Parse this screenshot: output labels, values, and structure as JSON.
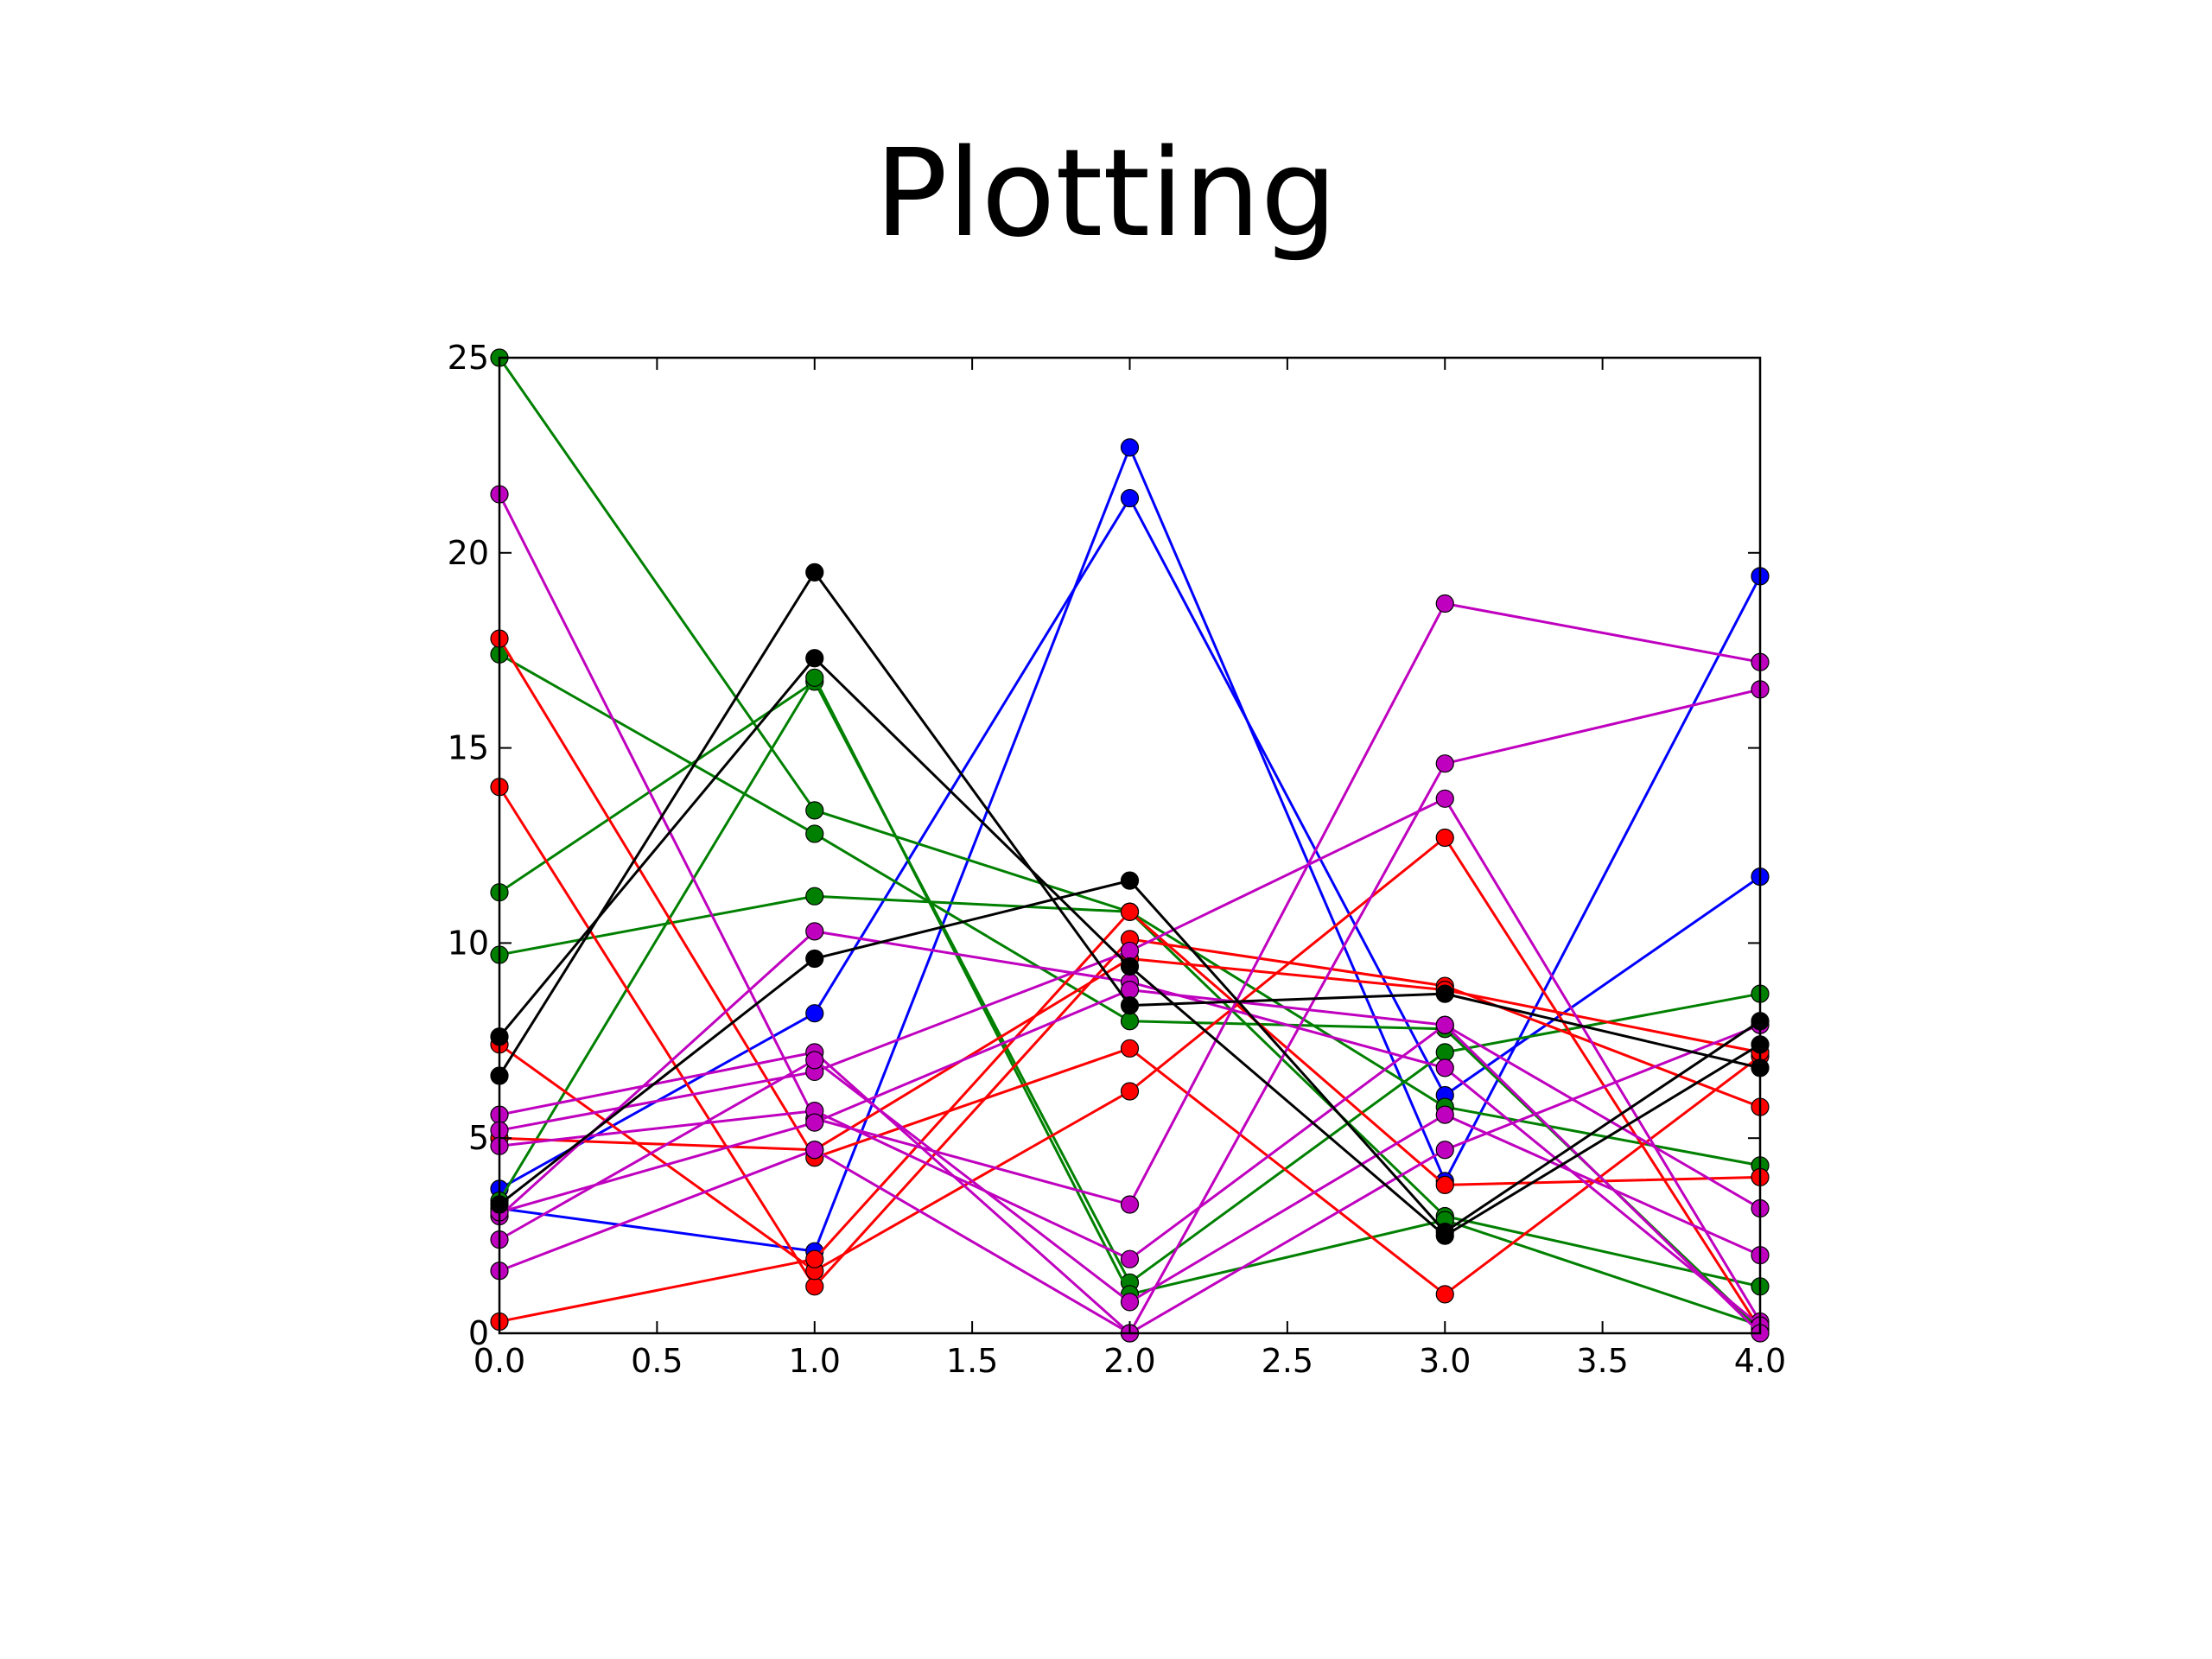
{
  "slide": {
    "title": "Plotting"
  },
  "chart_data": {
    "type": "line",
    "title": "",
    "xlabel": "",
    "ylabel": "",
    "xlim": [
      0,
      4
    ],
    "ylim": [
      0,
      25
    ],
    "grid": false,
    "marker": "circle",
    "x": [
      0,
      1,
      2,
      3,
      4
    ],
    "x_ticks": [
      "0.0",
      "0.5",
      "1.0",
      "1.5",
      "2.0",
      "2.5",
      "3.0",
      "3.5",
      "4.0"
    ],
    "y_ticks": [
      "0",
      "5",
      "10",
      "15",
      "20",
      "25"
    ],
    "series": [
      {
        "color": "#0000ff",
        "values": [
          3.2,
          2.1,
          22.7,
          3.9,
          19.4
        ]
      },
      {
        "color": "#0000ff",
        "values": [
          3.7,
          8.2,
          21.4,
          6.1,
          11.7
        ]
      },
      {
        "color": "#008000",
        "values": [
          25.0,
          13.4,
          10.8,
          3.0,
          1.2
        ]
      },
      {
        "color": "#008000",
        "values": [
          17.4,
          12.8,
          8.0,
          7.8,
          0.1
        ]
      },
      {
        "color": "#008000",
        "values": [
          11.3,
          16.7,
          1.3,
          7.2,
          8.7
        ]
      },
      {
        "color": "#008000",
        "values": [
          9.7,
          11.2,
          10.8,
          5.8,
          4.3
        ]
      },
      {
        "color": "#008000",
        "values": [
          3.4,
          16.8,
          1.0,
          2.9,
          0.2
        ]
      },
      {
        "color": "#ff0000",
        "values": [
          17.8,
          4.5,
          7.3,
          1.0,
          7.1
        ]
      },
      {
        "color": "#ff0000",
        "values": [
          14.0,
          1.2,
          10.1,
          8.9,
          5.8
        ]
      },
      {
        "color": "#ff0000",
        "values": [
          7.4,
          1.6,
          6.2,
          12.7,
          0.1
        ]
      },
      {
        "color": "#ff0000",
        "values": [
          0.3,
          1.9,
          10.8,
          3.8,
          4.0
        ]
      },
      {
        "color": "#ff0000",
        "values": [
          5.0,
          4.7,
          9.6,
          8.8,
          7.2
        ]
      },
      {
        "color": "#bf00bf",
        "values": [
          21.5,
          5.5,
          3.3,
          18.7,
          17.2
        ]
      },
      {
        "color": "#bf00bf",
        "values": [
          5.6,
          7.2,
          0.0,
          14.6,
          16.5
        ]
      },
      {
        "color": "#bf00bf",
        "values": [
          5.2,
          6.7,
          9.8,
          13.7,
          0.3
        ]
      },
      {
        "color": "#bf00bf",
        "values": [
          4.8,
          5.7,
          1.9,
          7.9,
          3.2
        ]
      },
      {
        "color": "#bf00bf",
        "values": [
          3.0,
          10.3,
          9.0,
          6.8,
          0.2
        ]
      },
      {
        "color": "#bf00bf",
        "values": [
          2.4,
          7.0,
          0.8,
          5.6,
          2.0
        ]
      },
      {
        "color": "#bf00bf",
        "values": [
          1.6,
          4.7,
          0.0,
          4.7,
          7.9
        ]
      },
      {
        "color": "#bf00bf",
        "values": [
          3.1,
          5.4,
          8.8,
          7.9,
          0.0
        ]
      },
      {
        "color": "#000000",
        "values": [
          6.6,
          19.5,
          8.4,
          8.7,
          6.8
        ]
      },
      {
        "color": "#000000",
        "values": [
          7.6,
          17.3,
          9.4,
          2.5,
          7.4
        ]
      },
      {
        "color": "#000000",
        "values": [
          3.3,
          9.6,
          11.6,
          2.6,
          8.0
        ]
      }
    ]
  }
}
